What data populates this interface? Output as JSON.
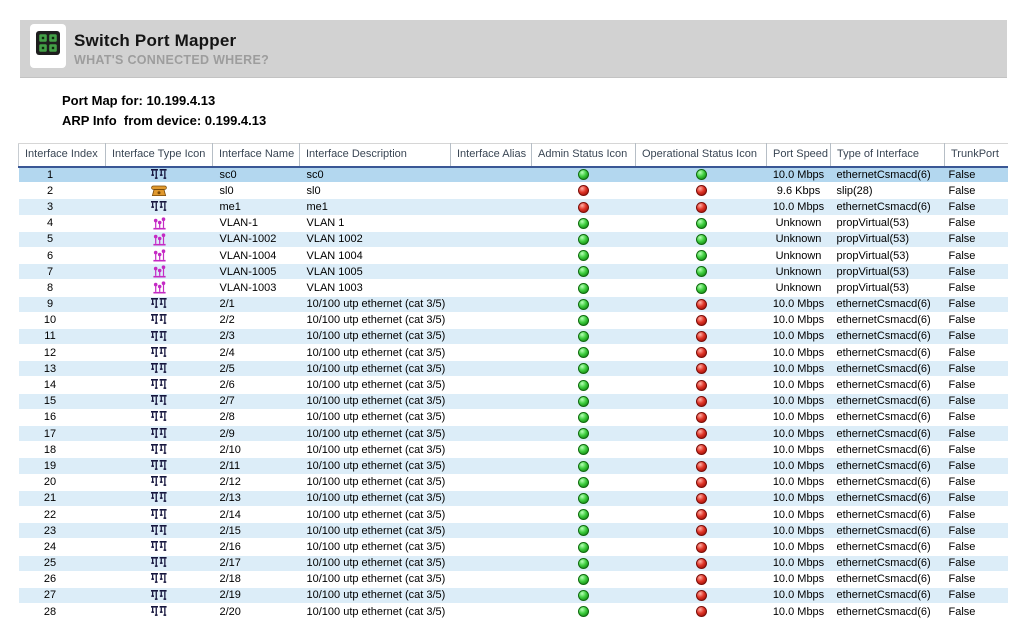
{
  "header": {
    "title": "Switch Port Mapper",
    "subtitle": "WHAT'S CONNECTED WHERE?",
    "icon": "app-grid-icon"
  },
  "info": {
    "port_map_line": "Port Map for: 10.199.4.13",
    "arp_line": "ARP Info  from device: 0.199.4.13"
  },
  "table": {
    "columns": [
      "Interface Index",
      "Interface Type Icon",
      "Interface Name",
      "Interface Description",
      "Interface Alias",
      "Admin Status Icon",
      "Operational Status Icon",
      "Port Speed",
      "Type of Interface",
      "TrunkPort"
    ],
    "rows": [
      {
        "index": "1",
        "type_icon": "ethernet-interface-icon",
        "name": "sc0",
        "description": "sc0",
        "alias": "",
        "admin_status": "up",
        "oper_status": "up",
        "port_speed": "10.0 Mbps",
        "interface_type": "ethernetCsmacd(6)",
        "trunk_port": "False",
        "selected": true
      },
      {
        "index": "2",
        "type_icon": "slip-interface-icon",
        "name": "sl0",
        "description": "sl0",
        "alias": "",
        "admin_status": "down",
        "oper_status": "down",
        "port_speed": "9.6 Kbps",
        "interface_type": "slip(28)",
        "trunk_port": "False",
        "selected": false
      },
      {
        "index": "3",
        "type_icon": "ethernet-interface-icon",
        "name": "me1",
        "description": "me1",
        "alias": "",
        "admin_status": "down",
        "oper_status": "down",
        "port_speed": "10.0 Mbps",
        "interface_type": "ethernetCsmacd(6)",
        "trunk_port": "False",
        "selected": false
      },
      {
        "index": "4",
        "type_icon": "vlan-interface-icon",
        "name": "VLAN-1",
        "description": "VLAN 1",
        "alias": "",
        "admin_status": "up",
        "oper_status": "up",
        "port_speed": "Unknown",
        "interface_type": "propVirtual(53)",
        "trunk_port": "False",
        "selected": false
      },
      {
        "index": "5",
        "type_icon": "vlan-interface-icon",
        "name": "VLAN-1002",
        "description": "VLAN 1002",
        "alias": "",
        "admin_status": "up",
        "oper_status": "up",
        "port_speed": "Unknown",
        "interface_type": "propVirtual(53)",
        "trunk_port": "False",
        "selected": false
      },
      {
        "index": "6",
        "type_icon": "vlan-interface-icon",
        "name": "VLAN-1004",
        "description": "VLAN 1004",
        "alias": "",
        "admin_status": "up",
        "oper_status": "up",
        "port_speed": "Unknown",
        "interface_type": "propVirtual(53)",
        "trunk_port": "False",
        "selected": false
      },
      {
        "index": "7",
        "type_icon": "vlan-interface-icon",
        "name": "VLAN-1005",
        "description": "VLAN 1005",
        "alias": "",
        "admin_status": "up",
        "oper_status": "up",
        "port_speed": "Unknown",
        "interface_type": "propVirtual(53)",
        "trunk_port": "False",
        "selected": false
      },
      {
        "index": "8",
        "type_icon": "vlan-interface-icon",
        "name": "VLAN-1003",
        "description": "VLAN 1003",
        "alias": "",
        "admin_status": "up",
        "oper_status": "up",
        "port_speed": "Unknown",
        "interface_type": "propVirtual(53)",
        "trunk_port": "False",
        "selected": false
      },
      {
        "index": "9",
        "type_icon": "ethernet-interface-icon",
        "name": "2/1",
        "description": "10/100 utp ethernet (cat 3/5)",
        "alias": "",
        "admin_status": "up",
        "oper_status": "down",
        "port_speed": "10.0 Mbps",
        "interface_type": "ethernetCsmacd(6)",
        "trunk_port": "False",
        "selected": false
      },
      {
        "index": "10",
        "type_icon": "ethernet-interface-icon",
        "name": "2/2",
        "description": "10/100 utp ethernet (cat 3/5)",
        "alias": "",
        "admin_status": "up",
        "oper_status": "down",
        "port_speed": "10.0 Mbps",
        "interface_type": "ethernetCsmacd(6)",
        "trunk_port": "False",
        "selected": false
      },
      {
        "index": "11",
        "type_icon": "ethernet-interface-icon",
        "name": "2/3",
        "description": "10/100 utp ethernet (cat 3/5)",
        "alias": "",
        "admin_status": "up",
        "oper_status": "down",
        "port_speed": "10.0 Mbps",
        "interface_type": "ethernetCsmacd(6)",
        "trunk_port": "False",
        "selected": false
      },
      {
        "index": "12",
        "type_icon": "ethernet-interface-icon",
        "name": "2/4",
        "description": "10/100 utp ethernet (cat 3/5)",
        "alias": "",
        "admin_status": "up",
        "oper_status": "down",
        "port_speed": "10.0 Mbps",
        "interface_type": "ethernetCsmacd(6)",
        "trunk_port": "False",
        "selected": false
      },
      {
        "index": "13",
        "type_icon": "ethernet-interface-icon",
        "name": "2/5",
        "description": "10/100 utp ethernet (cat 3/5)",
        "alias": "",
        "admin_status": "up",
        "oper_status": "down",
        "port_speed": "10.0 Mbps",
        "interface_type": "ethernetCsmacd(6)",
        "trunk_port": "False",
        "selected": false
      },
      {
        "index": "14",
        "type_icon": "ethernet-interface-icon",
        "name": "2/6",
        "description": "10/100 utp ethernet (cat 3/5)",
        "alias": "",
        "admin_status": "up",
        "oper_status": "down",
        "port_speed": "10.0 Mbps",
        "interface_type": "ethernetCsmacd(6)",
        "trunk_port": "False",
        "selected": false
      },
      {
        "index": "15",
        "type_icon": "ethernet-interface-icon",
        "name": "2/7",
        "description": "10/100 utp ethernet (cat 3/5)",
        "alias": "",
        "admin_status": "up",
        "oper_status": "down",
        "port_speed": "10.0 Mbps",
        "interface_type": "ethernetCsmacd(6)",
        "trunk_port": "False",
        "selected": false
      },
      {
        "index": "16",
        "type_icon": "ethernet-interface-icon",
        "name": "2/8",
        "description": "10/100 utp ethernet (cat 3/5)",
        "alias": "",
        "admin_status": "up",
        "oper_status": "down",
        "port_speed": "10.0 Mbps",
        "interface_type": "ethernetCsmacd(6)",
        "trunk_port": "False",
        "selected": false
      },
      {
        "index": "17",
        "type_icon": "ethernet-interface-icon",
        "name": "2/9",
        "description": "10/100 utp ethernet (cat 3/5)",
        "alias": "",
        "admin_status": "up",
        "oper_status": "down",
        "port_speed": "10.0 Mbps",
        "interface_type": "ethernetCsmacd(6)",
        "trunk_port": "False",
        "selected": false
      },
      {
        "index": "18",
        "type_icon": "ethernet-interface-icon",
        "name": "2/10",
        "description": "10/100 utp ethernet (cat 3/5)",
        "alias": "",
        "admin_status": "up",
        "oper_status": "down",
        "port_speed": "10.0 Mbps",
        "interface_type": "ethernetCsmacd(6)",
        "trunk_port": "False",
        "selected": false
      },
      {
        "index": "19",
        "type_icon": "ethernet-interface-icon",
        "name": "2/11",
        "description": "10/100 utp ethernet (cat 3/5)",
        "alias": "",
        "admin_status": "up",
        "oper_status": "down",
        "port_speed": "10.0 Mbps",
        "interface_type": "ethernetCsmacd(6)",
        "trunk_port": "False",
        "selected": false
      },
      {
        "index": "20",
        "type_icon": "ethernet-interface-icon",
        "name": "2/12",
        "description": "10/100 utp ethernet (cat 3/5)",
        "alias": "",
        "admin_status": "up",
        "oper_status": "down",
        "port_speed": "10.0 Mbps",
        "interface_type": "ethernetCsmacd(6)",
        "trunk_port": "False",
        "selected": false
      },
      {
        "index": "21",
        "type_icon": "ethernet-interface-icon",
        "name": "2/13",
        "description": "10/100 utp ethernet (cat 3/5)",
        "alias": "",
        "admin_status": "up",
        "oper_status": "down",
        "port_speed": "10.0 Mbps",
        "interface_type": "ethernetCsmacd(6)",
        "trunk_port": "False",
        "selected": false
      },
      {
        "index": "22",
        "type_icon": "ethernet-interface-icon",
        "name": "2/14",
        "description": "10/100 utp ethernet (cat 3/5)",
        "alias": "",
        "admin_status": "up",
        "oper_status": "down",
        "port_speed": "10.0 Mbps",
        "interface_type": "ethernetCsmacd(6)",
        "trunk_port": "False",
        "selected": false
      },
      {
        "index": "23",
        "type_icon": "ethernet-interface-icon",
        "name": "2/15",
        "description": "10/100 utp ethernet (cat 3/5)",
        "alias": "",
        "admin_status": "up",
        "oper_status": "down",
        "port_speed": "10.0 Mbps",
        "interface_type": "ethernetCsmacd(6)",
        "trunk_port": "False",
        "selected": false
      },
      {
        "index": "24",
        "type_icon": "ethernet-interface-icon",
        "name": "2/16",
        "description": "10/100 utp ethernet (cat 3/5)",
        "alias": "",
        "admin_status": "up",
        "oper_status": "down",
        "port_speed": "10.0 Mbps",
        "interface_type": "ethernetCsmacd(6)",
        "trunk_port": "False",
        "selected": false
      },
      {
        "index": "25",
        "type_icon": "ethernet-interface-icon",
        "name": "2/17",
        "description": "10/100 utp ethernet (cat 3/5)",
        "alias": "",
        "admin_status": "up",
        "oper_status": "down",
        "port_speed": "10.0 Mbps",
        "interface_type": "ethernetCsmacd(6)",
        "trunk_port": "False",
        "selected": false
      },
      {
        "index": "26",
        "type_icon": "ethernet-interface-icon",
        "name": "2/18",
        "description": "10/100 utp ethernet (cat 3/5)",
        "alias": "",
        "admin_status": "up",
        "oper_status": "down",
        "port_speed": "10.0 Mbps",
        "interface_type": "ethernetCsmacd(6)",
        "trunk_port": "False",
        "selected": false
      },
      {
        "index": "27",
        "type_icon": "ethernet-interface-icon",
        "name": "2/19",
        "description": "10/100 utp ethernet (cat 3/5)",
        "alias": "",
        "admin_status": "up",
        "oper_status": "down",
        "port_speed": "10.0 Mbps",
        "interface_type": "ethernetCsmacd(6)",
        "trunk_port": "False",
        "selected": false
      },
      {
        "index": "28",
        "type_icon": "ethernet-interface-icon",
        "name": "2/20",
        "description": "10/100 utp ethernet (cat 3/5)",
        "alias": "",
        "admin_status": "up",
        "oper_status": "down",
        "port_speed": "10.0 Mbps",
        "interface_type": "ethernetCsmacd(6)",
        "trunk_port": "False",
        "selected": false
      }
    ]
  },
  "colors": {
    "banner_bg": "#d2d2d2",
    "selected_row": "#b3d7ef",
    "stripe_row": "#dcedf8",
    "header_rule": "#3a5795",
    "status_up": "#2fb52f",
    "status_down": "#c92318",
    "ethernet_icon": "#16163e",
    "vlan_icon": "#c42ac4",
    "slip_icon": "#e0992f"
  }
}
